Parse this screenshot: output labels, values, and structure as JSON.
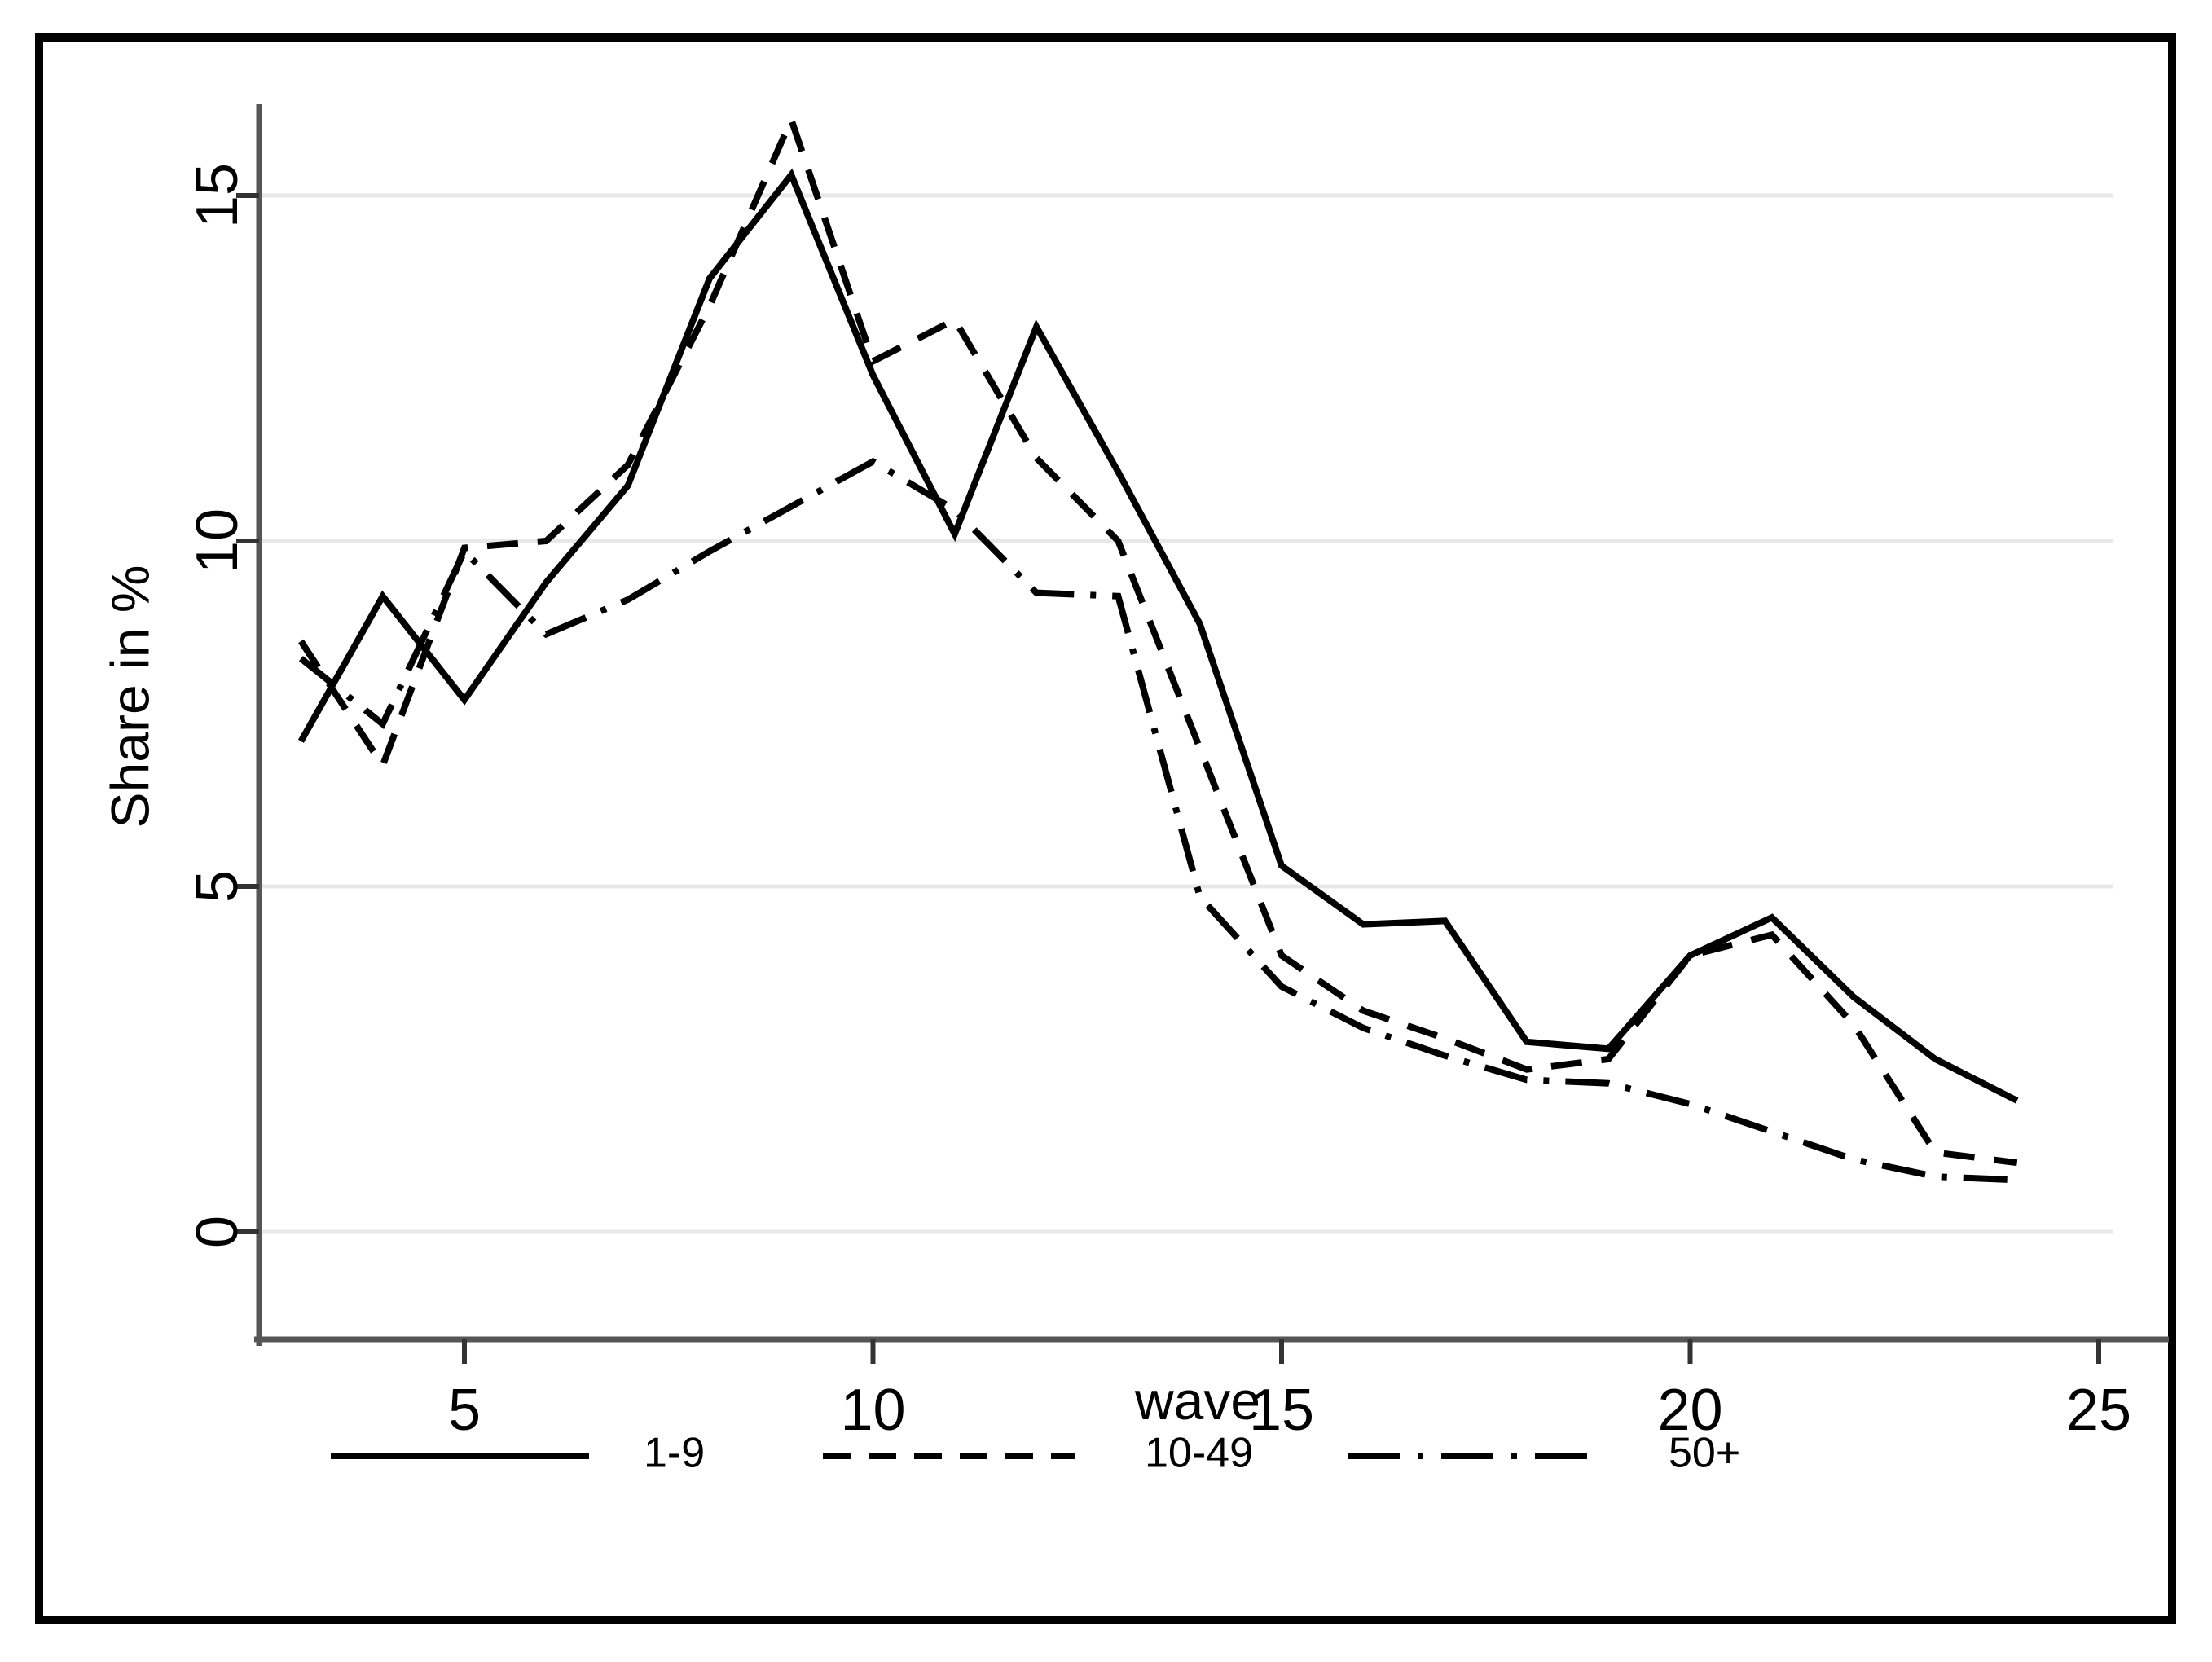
{
  "figure": {
    "y_axis_title": "Share in %",
    "x_axis_title": "wave",
    "border_color": "#000000",
    "axis_line_color": "#565656",
    "gridline_color": "#e8e8e8",
    "series_color": "#000000",
    "background_color": "#ffffff"
  },
  "chart_data": {
    "type": "line",
    "title": "",
    "xlabel": "wave",
    "ylabel": "Share in %",
    "x_ticks": [
      5,
      10,
      15,
      20,
      25
    ],
    "y_ticks": [
      0,
      5,
      10,
      15
    ],
    "xlim": [
      2.5,
      25.2
    ],
    "ylim": [
      -1.5,
      16.3
    ],
    "grid": "horizontal",
    "legend_position": "bottom",
    "x": [
      3,
      4,
      5,
      6,
      7,
      8,
      9,
      10,
      11,
      12,
      13,
      14,
      15,
      16,
      17,
      18,
      19,
      20,
      21,
      22,
      23,
      24
    ],
    "series": [
      {
        "name": "1-9",
        "style": "solid",
        "values": [
          7.1,
          9.2,
          7.7,
          9.4,
          10.8,
          13.8,
          15.3,
          12.4,
          10.1,
          13.1,
          11.0,
          8.8,
          5.3,
          4.45,
          4.5,
          2.75,
          2.65,
          4.0,
          4.55,
          3.4,
          2.5,
          1.9
        ]
      },
      {
        "name": "10-49",
        "style": "dashed",
        "values": [
          8.55,
          6.75,
          9.9,
          10.0,
          11.1,
          13.4,
          16.1,
          12.6,
          13.2,
          11.2,
          10.0,
          7.0,
          4.0,
          3.2,
          2.8,
          2.35,
          2.5,
          4.0,
          4.3,
          3.0,
          1.15,
          1.0
        ]
      },
      {
        "name": "50+",
        "style": "dashdot",
        "values": [
          8.3,
          7.35,
          9.85,
          8.65,
          9.15,
          9.85,
          10.5,
          11.15,
          10.45,
          9.25,
          9.2,
          4.85,
          3.55,
          2.95,
          2.55,
          2.2,
          2.15,
          1.85,
          1.45,
          1.05,
          0.8,
          0.75
        ]
      }
    ]
  },
  "legend": {
    "entries": [
      {
        "label": "1-9",
        "style": "solid"
      },
      {
        "label": "10-49",
        "style": "dashed"
      },
      {
        "label": "50+",
        "style": "dashdot"
      }
    ]
  }
}
